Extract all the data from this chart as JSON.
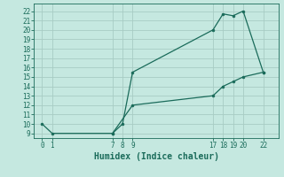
{
  "xlabel": "Humidex (Indice chaleur)",
  "bg_color": "#c5e8e0",
  "grid_color": "#a8ccc4",
  "line_color": "#1a6b5a",
  "line1_x": [
    0,
    1,
    7,
    8,
    9,
    17,
    18,
    19,
    20,
    22
  ],
  "line1_y": [
    10,
    9,
    9,
    10,
    15.5,
    20,
    21.7,
    21.5,
    22,
    15.5
  ],
  "line2_x": [
    7,
    9,
    17,
    18,
    19,
    20,
    22
  ],
  "line2_y": [
    9,
    12,
    13,
    14,
    14.5,
    15,
    15.5
  ],
  "xticks": [
    0,
    1,
    7,
    8,
    9,
    17,
    18,
    19,
    20,
    22
  ],
  "yticks": [
    9,
    10,
    11,
    12,
    13,
    14,
    15,
    16,
    17,
    18,
    19,
    20,
    21,
    22
  ],
  "xlim": [
    -0.8,
    23.5
  ],
  "ylim": [
    8.5,
    22.8
  ],
  "marker_size": 2.0,
  "line_width": 0.9,
  "tick_fontsize": 5.5,
  "xlabel_fontsize": 7.0,
  "font_family": "monospace"
}
